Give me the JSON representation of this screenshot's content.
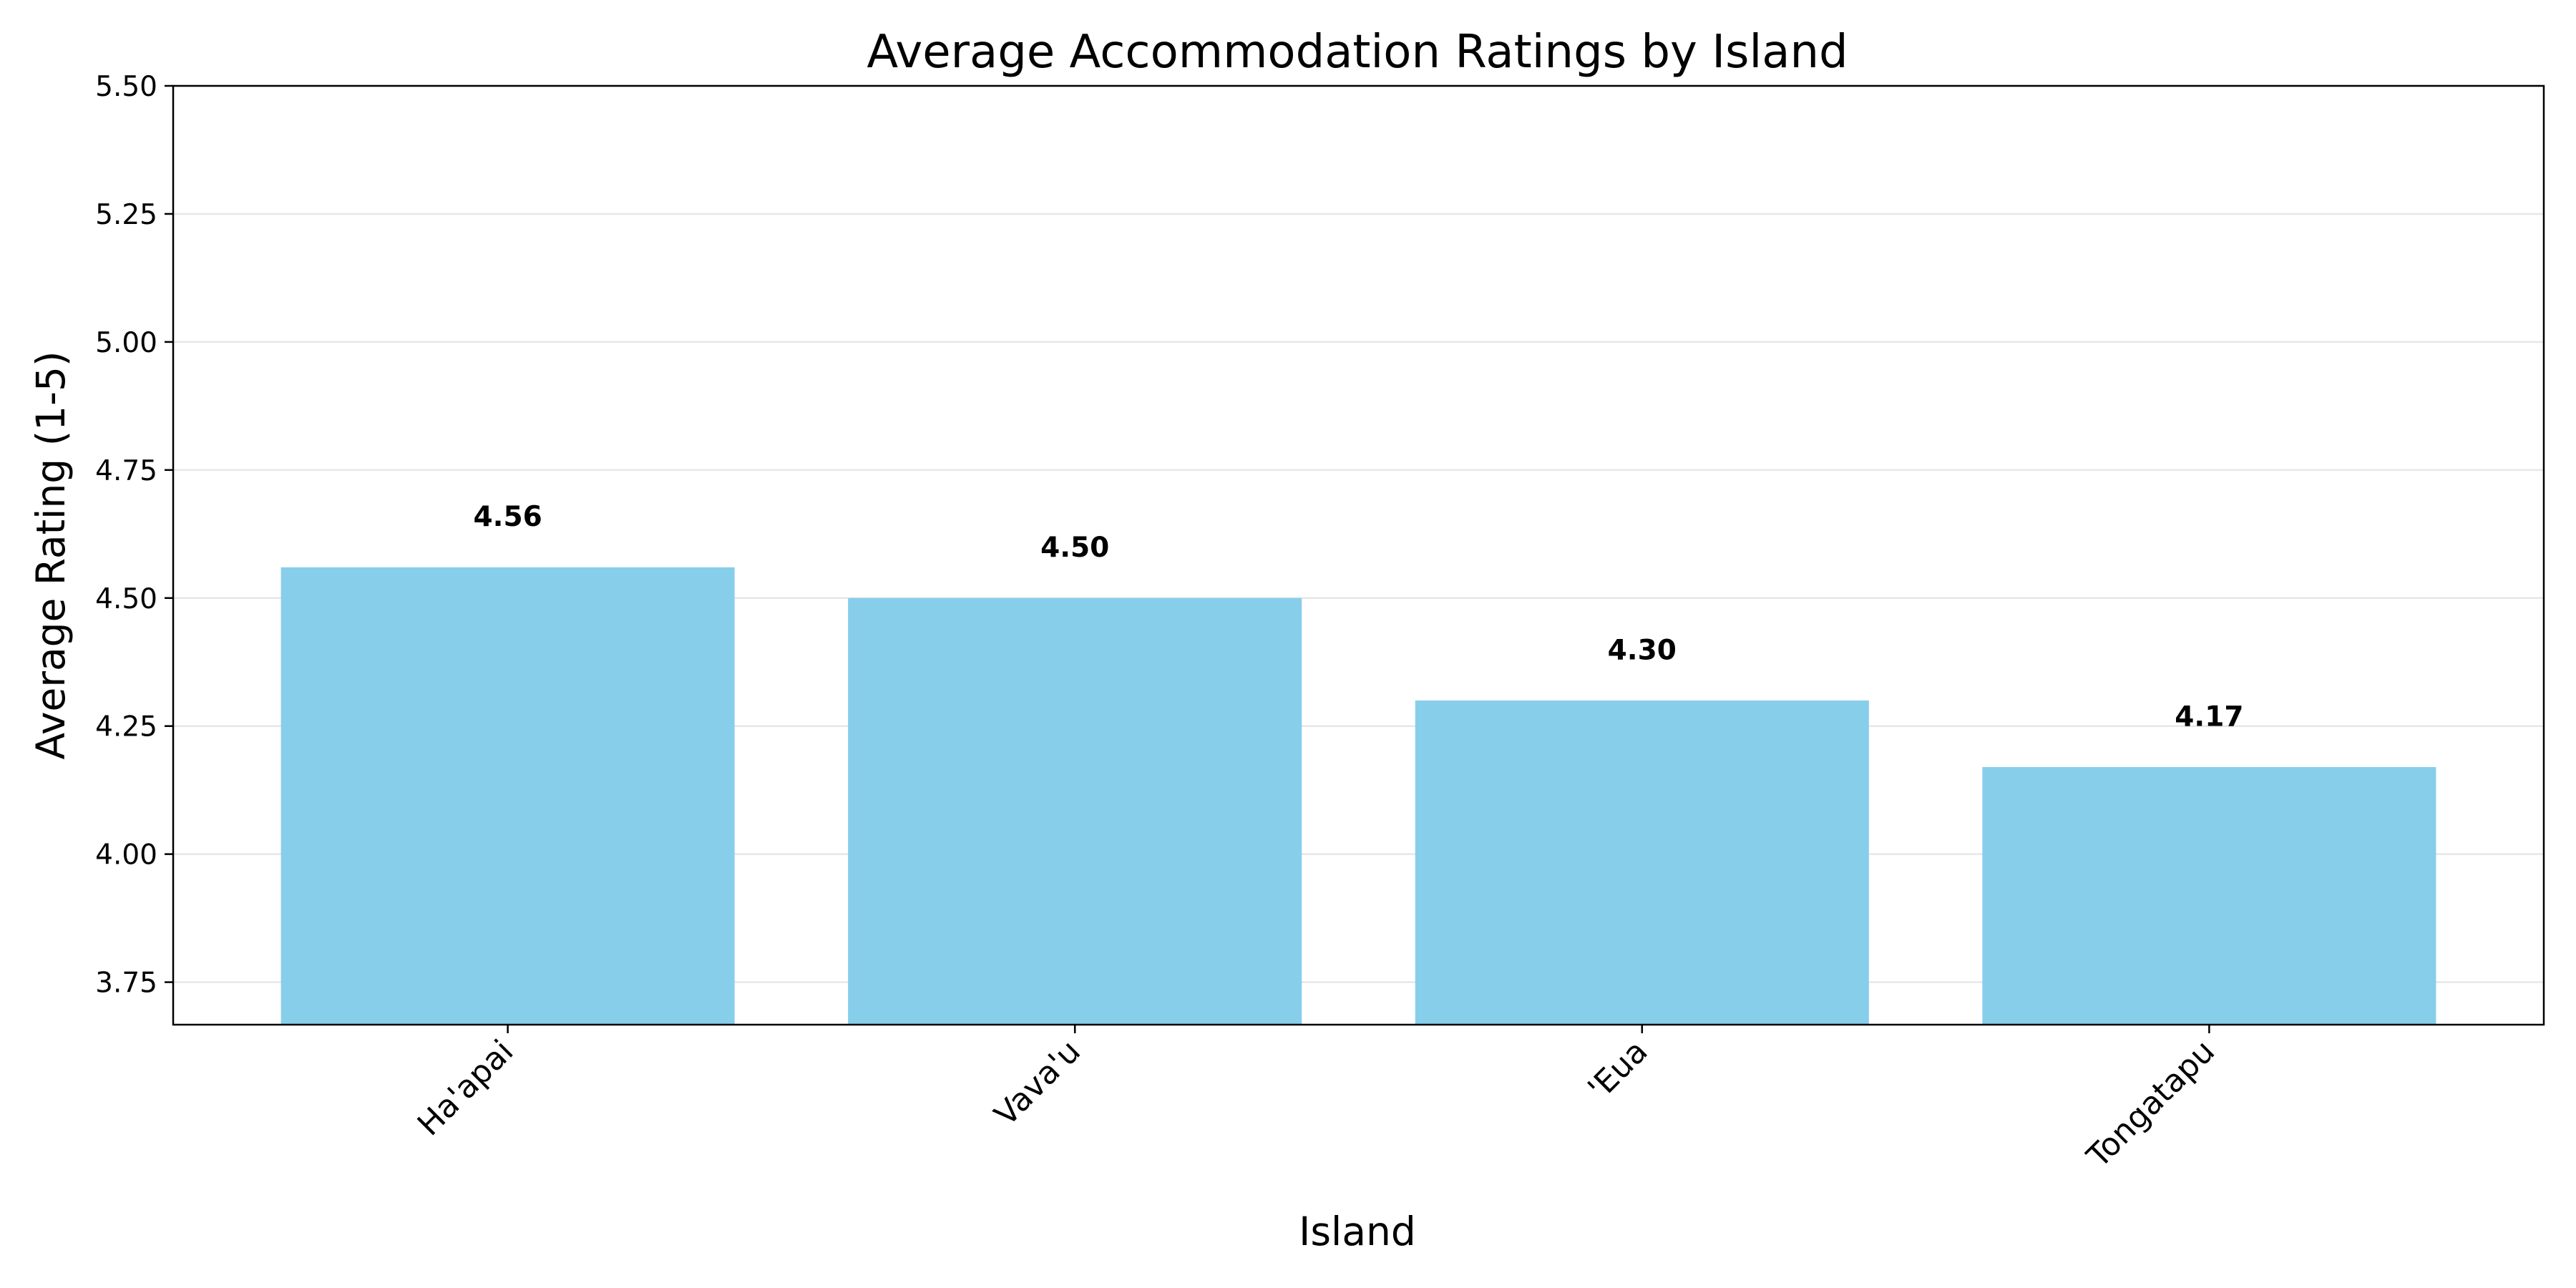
{
  "chart_data": {
    "type": "bar",
    "title": "Average Accommodation Ratings by Island",
    "xlabel": "Island",
    "ylabel": "Average Rating (1-5)",
    "categories": [
      "Ha'apai",
      "Vava'u",
      "'Eua",
      "Tongatapu"
    ],
    "values": [
      4.56,
      4.5,
      4.3,
      4.17
    ],
    "value_labels": [
      "4.56",
      "4.50",
      "4.30",
      "4.17"
    ],
    "ylim": [
      3.667,
      5.5
    ],
    "yticks": [
      3.75,
      4.0,
      4.25,
      4.5,
      4.75,
      5.0,
      5.25,
      5.5
    ],
    "ytick_labels": [
      "3.75",
      "4.00",
      "4.25",
      "4.50",
      "4.75",
      "5.00",
      "5.25",
      "5.50"
    ],
    "grid": "y",
    "legend": "none",
    "bar_color": "#87CEEB"
  }
}
